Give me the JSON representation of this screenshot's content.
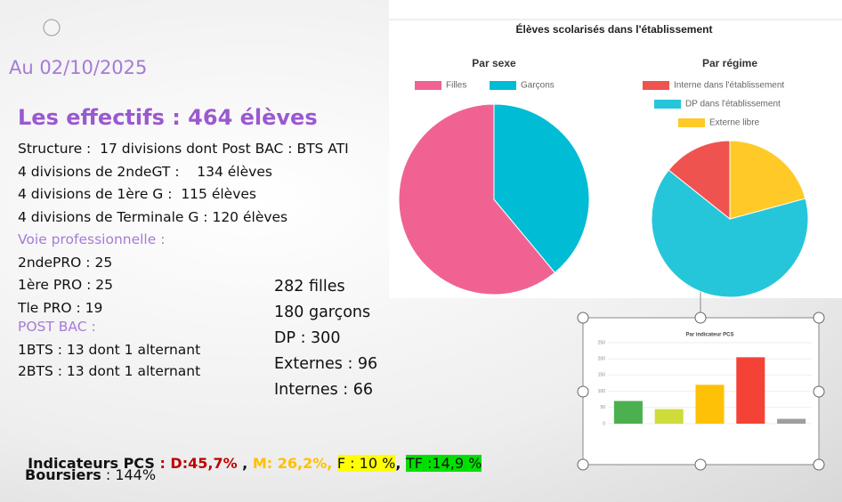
{
  "slide": {
    "date": "Au 02/10/2025",
    "heading": "Les effectifs : 464 élèves",
    "lines": [
      "Structure :  17 divisions dont Post BAC : BTS ATI",
      "4 divisions de 2ndeGT :    134 élèves",
      "4 divisions de 1ère G :  115 élèves",
      "4 divisions de Terminale G : 120 élèves"
    ],
    "pro_heading": "Voie professionnelle :",
    "pro_lines": [
      "2ndePRO : 25",
      "1ère PRO : 25",
      "Tle PRO : 19"
    ],
    "bac_heading": "POST BAC :",
    "bac_lines": [
      "1BTS : 13 dont 1 alternant",
      "2BTS : 13 dont 1 alternant"
    ],
    "totals": [
      "282 filles",
      "180 garçons",
      "DP : 300",
      "Externes : 96",
      "Internes : 66"
    ],
    "pcs": [
      "Indicateurs PCS",
      " : D:45,7%",
      " , ",
      "M: 26,2%,",
      "F : 10 %",
      ",",
      "TF :14,9 %"
    ],
    "boursiers": [
      "Boursiers",
      " : 144%"
    ]
  },
  "panel_title": "Élèves scolarisés dans l'établissement",
  "chart_data": [
    {
      "type": "pie",
      "title": "Par sexe",
      "categories": [
        "Filles",
        "Garçons"
      ],
      "values": [
        282,
        180
      ],
      "colors": [
        "#f06292",
        "#00bcd4"
      ]
    },
    {
      "type": "pie",
      "title": "Par régime",
      "categories": [
        "Interne dans l'établissement",
        "DP dans l'établissement",
        "Externe libre"
      ],
      "values": [
        66,
        300,
        96
      ],
      "colors": [
        "#ef5350",
        "#26c6da",
        "#ffca28"
      ]
    },
    {
      "type": "bar",
      "title": "Par indicateur PCS",
      "categories": [
        null,
        null,
        null,
        null,
        null
      ],
      "values": [
        70,
        45,
        120,
        205,
        15
      ],
      "colors": [
        "#4caf50",
        "#cddc39",
        "#ffc107",
        "#f44336",
        "#9e9e9e"
      ],
      "ylim": [
        0,
        250
      ],
      "yticks": [
        0,
        50,
        100,
        150,
        200,
        250
      ],
      "grid": true
    }
  ]
}
